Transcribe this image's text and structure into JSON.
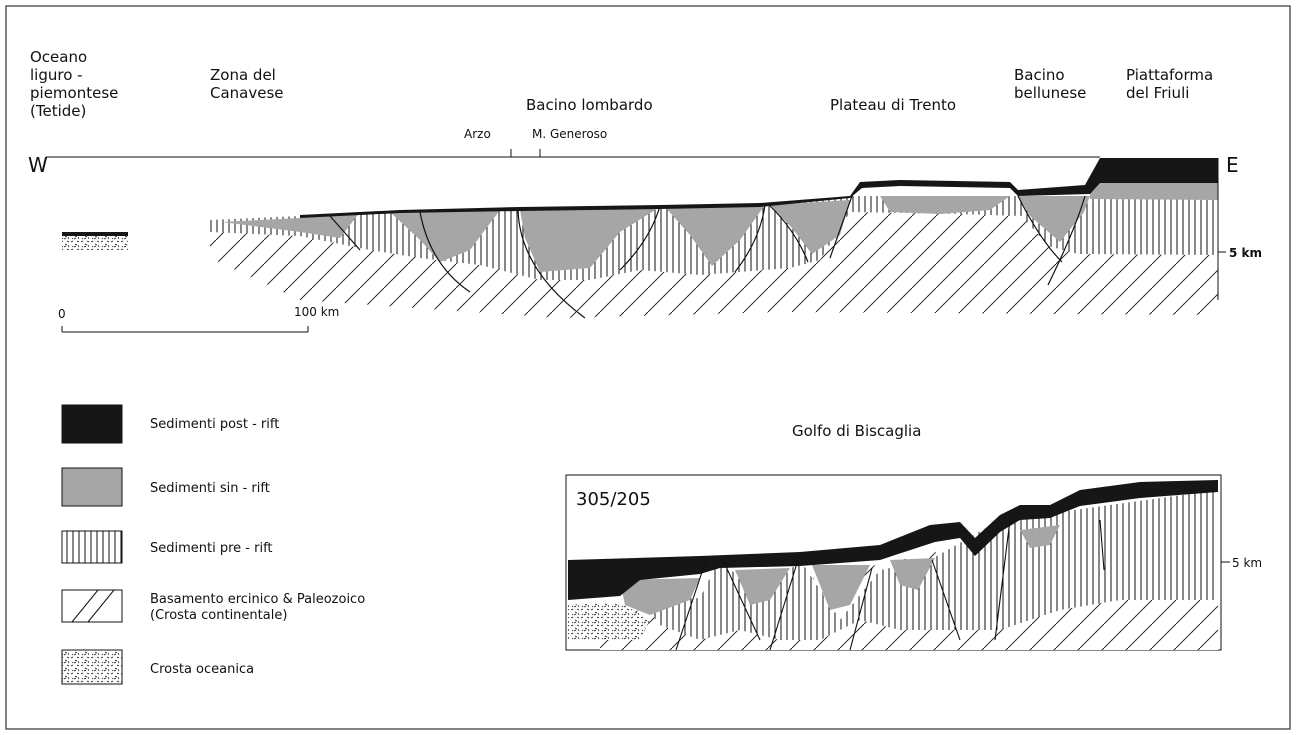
{
  "section": {
    "west_letter": "W",
    "east_letter": "E",
    "regions": [
      {
        "lines": [
          "Oceano",
          "liguro -",
          "piemontese",
          "(Tetide)"
        ]
      },
      {
        "lines": [
          "Zona  del",
          "Canavese"
        ]
      },
      {
        "lines": [
          "Bacino  lombardo"
        ]
      },
      {
        "lines": [
          "Plateau  di  Trento"
        ]
      },
      {
        "lines": [
          "Bacino",
          "bellunese"
        ]
      },
      {
        "lines": [
          "Piattaforma",
          "del  Friuli"
        ]
      }
    ],
    "localities": [
      "Arzo",
      "M. Generoso"
    ],
    "depth_label": "5 km",
    "scale_bar": {
      "start_label": "0",
      "end_label": "100 km"
    }
  },
  "legend": {
    "items": [
      {
        "label": "Sedimenti  post - rift",
        "pattern": "post-rift"
      },
      {
        "label": "Sedimenti  sin - rift",
        "pattern": "sin-rift"
      },
      {
        "label": "Sedimenti  pre - rift",
        "pattern": "pre-rift"
      },
      {
        "label": "Basamento  ercinico & Paleozoico",
        "label2": "(Crosta  continentale)",
        "pattern": "basement"
      },
      {
        "label": "Crosta  oceanica",
        "pattern": "oceanic"
      }
    ]
  },
  "inset": {
    "title": "Golfo  di  Biscaglia",
    "profile_id": "305/205",
    "depth_label": "5 km"
  },
  "colors": {
    "post_rift": "#161616",
    "sin_rift": "#a6a6a6",
    "lines": "#111111"
  }
}
